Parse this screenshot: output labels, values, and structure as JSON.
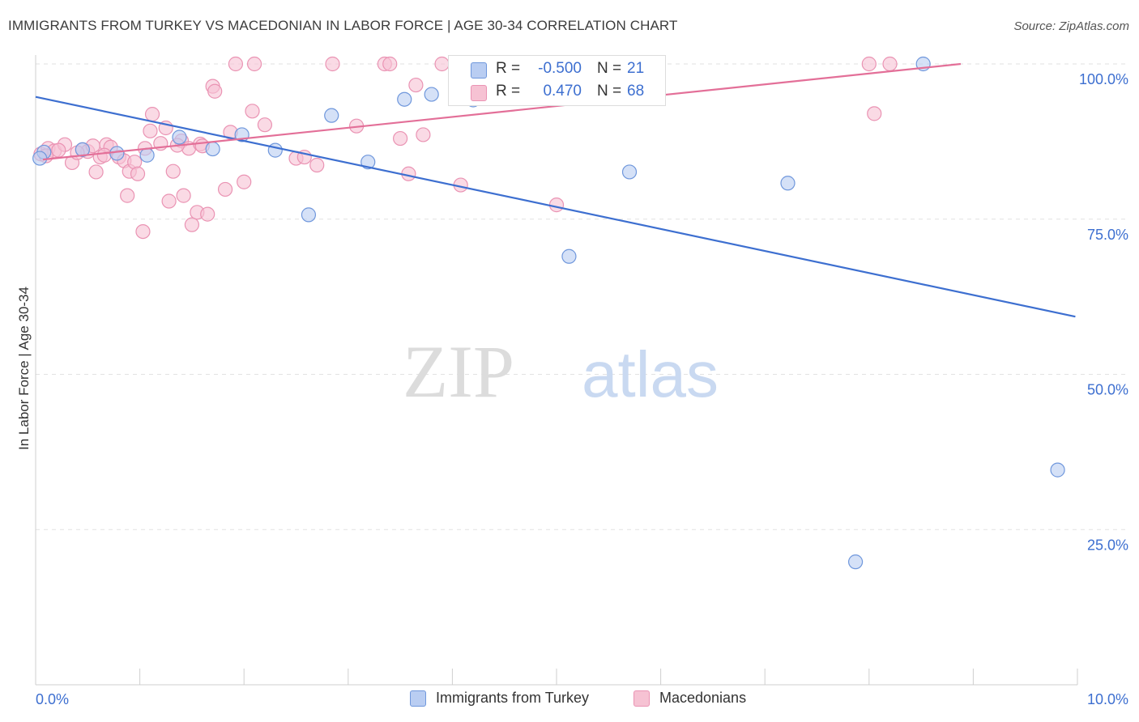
{
  "title": "IMMIGRANTS FROM TURKEY VS MACEDONIAN IN LABOR FORCE | AGE 30-34 CORRELATION CHART",
  "source": "Source: ZipAtlas.com",
  "watermark": {
    "zip": "ZIP",
    "atlas": "atlas"
  },
  "colors": {
    "blue": "#3d6fd0",
    "blue_fill": "#b9cdf2",
    "blue_stroke": "#6f97dc",
    "pink": "#e36f98",
    "pink_fill": "#f6c2d3",
    "pink_stroke": "#ea93b3",
    "tick_label": "#3d6fd0",
    "grid": "#e2e2e2"
  },
  "stats": [
    {
      "r_label": "R =",
      "r_value": "-0.500",
      "n_label": "N =",
      "n_value": "21"
    },
    {
      "r_label": "R =",
      "r_value": "0.470",
      "n_label": "N =",
      "n_value": "68"
    }
  ],
  "legend": [
    {
      "label": "Immigrants from Turkey"
    },
    {
      "label": "Macedonians"
    }
  ],
  "chart_data": {
    "type": "scatter",
    "xlabel": "",
    "ylabel": "In Labor Force | Age 30-34",
    "xlim": [
      0,
      10
    ],
    "ylim": [
      0,
      100
    ],
    "x_tick_labels": [
      {
        "value": 0,
        "label": "0.0%"
      },
      {
        "value": 10,
        "label": "10.0%"
      }
    ],
    "y_tick_labels": [
      {
        "value": 25,
        "label": "25.0%"
      },
      {
        "value": 50,
        "label": "50.0%"
      },
      {
        "value": 75,
        "label": "75.0%"
      },
      {
        "value": 100,
        "label": "100.0%"
      }
    ],
    "grid": true,
    "series": [
      {
        "name": "Immigrants from Turkey",
        "color": "#3d6fd0",
        "points": [
          [
            0.08,
            85.8
          ],
          [
            0.45,
            86.2
          ],
          [
            0.78,
            85.6
          ],
          [
            1.07,
            85.3
          ],
          [
            1.38,
            88.2
          ],
          [
            1.7,
            86.3
          ],
          [
            1.98,
            88.6
          ],
          [
            2.3,
            86.1
          ],
          [
            2.62,
            75.7
          ],
          [
            2.84,
            91.7
          ],
          [
            3.19,
            84.2
          ],
          [
            3.54,
            94.3
          ],
          [
            3.8,
            95.1
          ],
          [
            4.2,
            94.2
          ],
          [
            5.12,
            69.0
          ],
          [
            5.7,
            82.6
          ],
          [
            7.22,
            80.8
          ],
          [
            7.87,
            19.8
          ],
          [
            8.52,
            100.0
          ],
          [
            9.81,
            34.6
          ],
          [
            0.04,
            84.8
          ]
        ],
        "trend": {
          "x": [
            0,
            9.98
          ],
          "y": [
            94.7,
            59.3
          ]
        }
      },
      {
        "name": "Macedonians",
        "color": "#e36f98",
        "points": [
          [
            0.05,
            85.5
          ],
          [
            0.12,
            86.4
          ],
          [
            0.18,
            86.0
          ],
          [
            0.28,
            87.0
          ],
          [
            0.35,
            84.1
          ],
          [
            0.45,
            86.2
          ],
          [
            0.5,
            85.9
          ],
          [
            0.55,
            86.8
          ],
          [
            0.58,
            82.6
          ],
          [
            0.62,
            85.0
          ],
          [
            0.68,
            87.0
          ],
          [
            0.72,
            86.6
          ],
          [
            0.8,
            85.0
          ],
          [
            0.85,
            84.4
          ],
          [
            0.88,
            78.8
          ],
          [
            0.9,
            82.7
          ],
          [
            0.95,
            84.2
          ],
          [
            0.98,
            82.3
          ],
          [
            1.05,
            86.4
          ],
          [
            1.03,
            73.0
          ],
          [
            1.1,
            89.2
          ],
          [
            1.12,
            91.9
          ],
          [
            1.2,
            87.2
          ],
          [
            1.25,
            89.7
          ],
          [
            1.28,
            77.9
          ],
          [
            1.32,
            82.7
          ],
          [
            1.4,
            87.6
          ],
          [
            1.42,
            78.8
          ],
          [
            1.47,
            86.4
          ],
          [
            1.5,
            74.1
          ],
          [
            1.55,
            76.1
          ],
          [
            1.58,
            87.1
          ],
          [
            1.65,
            75.8
          ],
          [
            1.7,
            96.4
          ],
          [
            1.72,
            95.6
          ],
          [
            1.82,
            79.8
          ],
          [
            1.87,
            89.0
          ],
          [
            1.92,
            100.0
          ],
          [
            2.0,
            81.0
          ],
          [
            2.08,
            92.4
          ],
          [
            2.1,
            100.0
          ],
          [
            2.2,
            90.2
          ],
          [
            2.5,
            84.8
          ],
          [
            2.58,
            85.0
          ],
          [
            2.7,
            83.7
          ],
          [
            2.85,
            100.0
          ],
          [
            3.08,
            90.0
          ],
          [
            3.35,
            100.0
          ],
          [
            3.4,
            100.0
          ],
          [
            3.5,
            88.0
          ],
          [
            3.58,
            82.3
          ],
          [
            3.65,
            96.6
          ],
          [
            3.72,
            88.6
          ],
          [
            3.9,
            100.0
          ],
          [
            4.08,
            80.5
          ],
          [
            4.28,
            95.5
          ],
          [
            4.35,
            100.0
          ],
          [
            5.0,
            77.3
          ],
          [
            8.0,
            100.0
          ],
          [
            8.05,
            92.0
          ],
          [
            8.2,
            100.0
          ],
          [
            0.1,
            85.2
          ],
          [
            0.22,
            86.1
          ],
          [
            0.4,
            85.7
          ],
          [
            0.66,
            85.3
          ],
          [
            1.36,
            86.9
          ],
          [
            1.6,
            86.8
          ],
          [
            4.9,
            100.0
          ]
        ],
        "trend": {
          "x": [
            0.07,
            8.88
          ],
          "y": [
            84.6,
            100.0
          ]
        }
      }
    ]
  }
}
